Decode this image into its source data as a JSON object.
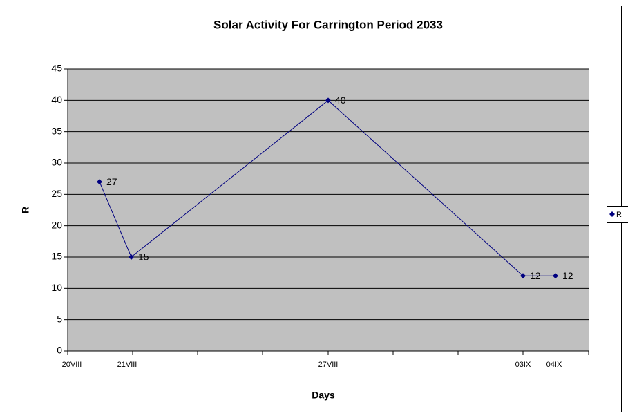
{
  "chart_data": {
    "type": "line",
    "title": "Solar Activity For Carrington Period 2033",
    "x_label": "Days",
    "y_label": "R",
    "categories": [
      "20VIII",
      "21VIII",
      "27VIII",
      "03IX",
      "04IX"
    ],
    "series": [
      {
        "name": "R",
        "color": "#000080",
        "values": [
          27,
          15,
          40,
          12,
          12
        ]
      }
    ],
    "ylim": [
      0,
      45
    ],
    "yticks": [
      0,
      5,
      10,
      15,
      20,
      25,
      30,
      35,
      40,
      45
    ],
    "grid": true,
    "legend": "right"
  }
}
